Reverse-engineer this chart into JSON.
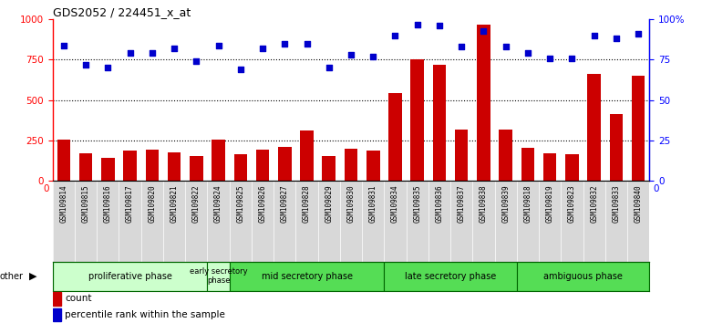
{
  "title": "GDS2052 / 224451_x_at",
  "samples": [
    "GSM109814",
    "GSM109815",
    "GSM109816",
    "GSM109817",
    "GSM109820",
    "GSM109821",
    "GSM109822",
    "GSM109824",
    "GSM109825",
    "GSM109826",
    "GSM109827",
    "GSM109828",
    "GSM109829",
    "GSM109830",
    "GSM109831",
    "GSM109834",
    "GSM109835",
    "GSM109836",
    "GSM109837",
    "GSM109838",
    "GSM109839",
    "GSM109818",
    "GSM109819",
    "GSM109823",
    "GSM109832",
    "GSM109833",
    "GSM109840"
  ],
  "counts": [
    255,
    170,
    145,
    185,
    195,
    175,
    155,
    255,
    165,
    195,
    210,
    310,
    155,
    200,
    185,
    545,
    755,
    720,
    315,
    970,
    320,
    205,
    170,
    165,
    660,
    415,
    650
  ],
  "percentiles": [
    84,
    72,
    70,
    79,
    79,
    82,
    74,
    84,
    69,
    82,
    85,
    85,
    70,
    78,
    77,
    90,
    97,
    96,
    83,
    93,
    83,
    79,
    76,
    76,
    90,
    88,
    91
  ],
  "bar_color": "#cc0000",
  "dot_color": "#0000cc",
  "ylim_left": [
    0,
    1000
  ],
  "ylim_right": [
    0,
    100
  ],
  "yticks_left": [
    0,
    250,
    500,
    750,
    1000
  ],
  "yticks_right": [
    0,
    25,
    50,
    75,
    100
  ],
  "ytick_right_labels": [
    "0",
    "25",
    "50",
    "75",
    "100%"
  ],
  "tick_area_color": "#d8d8d8",
  "plot_bg_color": "#ffffff",
  "phase_configs": [
    {
      "name": "proliferative phase",
      "start": 0,
      "end": 7,
      "color": "#ccffcc"
    },
    {
      "name": "early secretory\nphase",
      "start": 7,
      "end": 8,
      "color": "#ccffcc"
    },
    {
      "name": "mid secretory phase",
      "start": 8,
      "end": 15,
      "color": "#55dd55"
    },
    {
      "name": "late secretory phase",
      "start": 15,
      "end": 21,
      "color": "#55dd55"
    },
    {
      "name": "ambiguous phase",
      "start": 21,
      "end": 27,
      "color": "#55dd55"
    }
  ]
}
